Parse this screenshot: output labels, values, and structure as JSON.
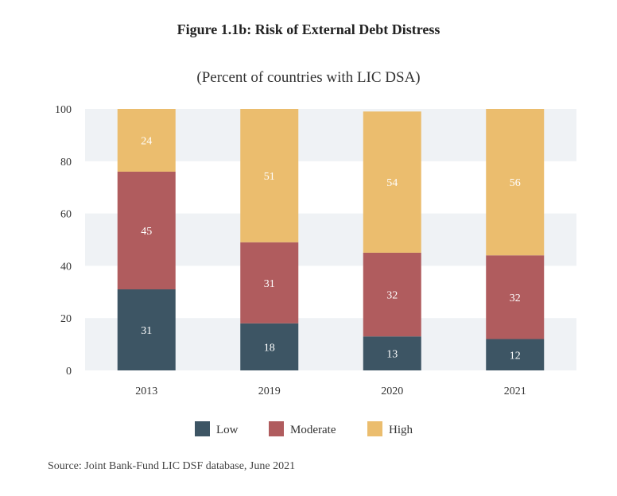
{
  "title": "Figure 1.1b: Risk of External Debt Distress",
  "subtitle": "(Percent of countries with LIC DSA)",
  "source": "Source: Joint Bank-Fund LIC DSF database, June 2021",
  "chart_data": {
    "type": "bar",
    "stacked": true,
    "categories": [
      "2013",
      "2019",
      "2020",
      "2021"
    ],
    "series": [
      {
        "name": "Low",
        "values": [
          31,
          18,
          13,
          12
        ],
        "color": "#3d5564"
      },
      {
        "name": "Moderate",
        "values": [
          45,
          31,
          32,
          32
        ],
        "color": "#b05c5e"
      },
      {
        "name": "High",
        "values": [
          24,
          51,
          54,
          56
        ],
        "color": "#ebbd6e"
      }
    ],
    "ylim": [
      0,
      100
    ],
    "yticks": [
      0,
      20,
      40,
      60,
      80,
      100
    ],
    "grid": "alternating horizontal bands",
    "legend": "bottom",
    "label_colors": {
      "light": "#ffffff"
    },
    "band_color": "#eff2f5"
  }
}
